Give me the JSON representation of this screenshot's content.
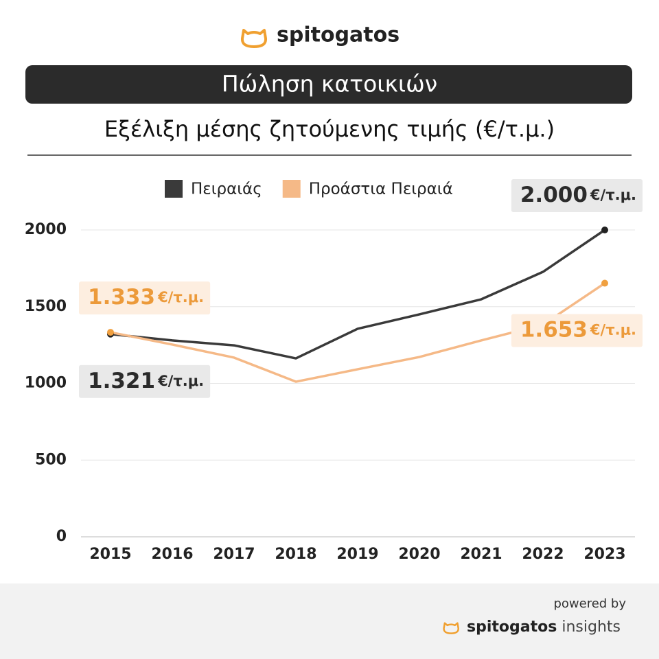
{
  "header": {
    "brand": "spitogatos"
  },
  "chart_data": {
    "type": "line",
    "title": "Πώληση κατοικιών",
    "subtitle": "Εξέλιξη μέσης ζητούμενης τιμής (€/τ.μ.)",
    "categories": [
      "2015",
      "2016",
      "2017",
      "2018",
      "2019",
      "2020",
      "2021",
      "2022",
      "2023"
    ],
    "series": [
      {
        "name": "Πειραιάς",
        "color": "#3a3a3a",
        "values": [
          1321,
          1280,
          1248,
          1163,
          1356,
          1450,
          1548,
          1727,
          2000
        ],
        "value_labels": [
          "1.321",
          null,
          null,
          null,
          null,
          null,
          null,
          null,
          "2.000"
        ]
      },
      {
        "name": "Προάστια Πειραιά",
        "color": "#f5b987",
        "values": [
          1333,
          1253,
          1168,
          1011,
          1092,
          1172,
          1280,
          1383,
          1653
        ],
        "value_labels": [
          "1.333",
          null,
          null,
          null,
          null,
          null,
          null,
          null,
          "1.653"
        ]
      }
    ],
    "value_label_unit": "€/τ.μ.",
    "ylim": [
      0,
      2000
    ],
    "yticks": [
      0,
      500,
      1000,
      1500,
      2000
    ],
    "grid": true,
    "legend": "top"
  },
  "footer": {
    "powered_by": "powered by",
    "brand": "spitogatos",
    "product": "insights"
  }
}
